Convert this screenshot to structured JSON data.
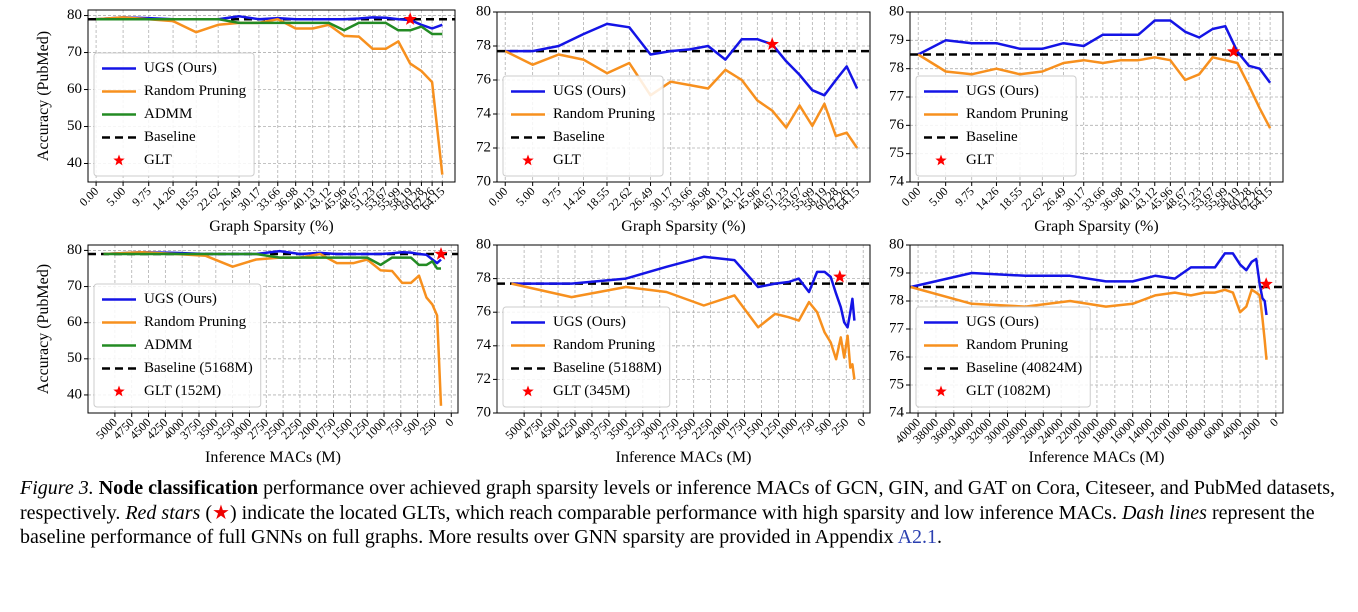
{
  "chart_data": [
    {
      "type": "line",
      "xlabel": "Graph Sparsity (%)",
      "ylabel": "Accuracy (PubMed)",
      "legend": "lower left",
      "grid": true,
      "xlim": [
        -1.5,
        66.5
      ],
      "ylim": [
        35,
        81.5
      ],
      "xticks": [
        {
          "value": 0,
          "label": "0.00"
        },
        {
          "value": 5,
          "label": "5.00"
        },
        9.75,
        14.26,
        18.55,
        22.62,
        26.49,
        30.17,
        33.66,
        36.98,
        40.13,
        43.12,
        45.96,
        48.67,
        51.23,
        53.67,
        55.99,
        58.19,
        60.28,
        62.26,
        64.15
      ],
      "yticks": [
        40,
        50,
        60,
        70,
        80
      ],
      "x": [
        0,
        5,
        9.75,
        14.26,
        18.55,
        22.62,
        26.49,
        30.17,
        33.66,
        36.98,
        40.13,
        43.12,
        45.96,
        48.67,
        51.23,
        53.67,
        55.99,
        58.19,
        60.28,
        62.26,
        64.15
      ],
      "series": [
        {
          "name": "UGS (Ours)",
          "color": "#1414e6",
          "values": [
            79,
            79.5,
            79.3,
            79,
            79,
            79,
            79.8,
            79,
            79.3,
            79,
            79,
            79,
            79,
            79.2,
            79.5,
            79.4,
            79,
            78.8,
            77.5,
            76.5,
            77.5
          ]
        },
        {
          "name": "Random Pruning",
          "color": "#f7901e",
          "values": [
            79,
            79.5,
            79,
            78.5,
            75.5,
            77.5,
            78,
            78,
            79,
            76.5,
            76.5,
            77.5,
            74.5,
            74.3,
            71,
            71,
            73,
            67,
            65,
            62,
            37
          ]
        },
        {
          "name": "ADMM",
          "color": "#238b23",
          "values": [
            79,
            79,
            79,
            79,
            79,
            79,
            78,
            78,
            78,
            78,
            78,
            78,
            76,
            78,
            78,
            78,
            76,
            76,
            77,
            75,
            75
          ]
        }
      ],
      "baseline": {
        "name": "Baseline",
        "value": 79
      },
      "glt": {
        "name": "GLT",
        "x": 58.19,
        "y": 79
      }
    },
    {
      "type": "line",
      "xlabel": "Graph Sparsity (%)",
      "legend": "lower left",
      "grid": true,
      "xlim": [
        -1.5,
        66.5
      ],
      "ylim": [
        70,
        80
      ],
      "xticks": [
        {
          "value": 0,
          "label": "0.00"
        },
        {
          "value": 5,
          "label": "5.00"
        },
        9.75,
        14.26,
        18.55,
        22.62,
        26.49,
        30.17,
        33.66,
        36.98,
        40.13,
        43.12,
        45.96,
        48.67,
        51.23,
        53.67,
        55.99,
        58.19,
        60.28,
        62.26,
        64.15
      ],
      "yticks": [
        70,
        72,
        74,
        76,
        78,
        80
      ],
      "x": [
        0,
        5,
        9.75,
        14.26,
        18.55,
        22.62,
        26.49,
        30.17,
        33.66,
        36.98,
        40.13,
        43.12,
        45.96,
        48.67,
        51.23,
        53.67,
        55.99,
        58.19,
        60.28,
        62.26,
        64.15
      ],
      "series": [
        {
          "name": "UGS (Ours)",
          "color": "#1414e6",
          "values": [
            77.7,
            77.7,
            78,
            78.7,
            79.3,
            79.1,
            77.5,
            77.7,
            77.8,
            78,
            77.2,
            78.4,
            78.4,
            78.1,
            77.1,
            76.3,
            75.4,
            75.1,
            76,
            76.8,
            75.5
          ]
        },
        {
          "name": "Random Pruning",
          "color": "#f7901e",
          "values": [
            77.7,
            76.9,
            77.5,
            77.2,
            76.4,
            77,
            75.1,
            75.9,
            75.7,
            75.5,
            76.6,
            76,
            74.8,
            74.2,
            73.2,
            74.5,
            73.3,
            74.6,
            72.7,
            72.9,
            72
          ]
        }
      ],
      "baseline": {
        "name": "Baseline",
        "value": 77.7
      },
      "glt": {
        "name": "GLT",
        "x": 48.67,
        "y": 78.1
      }
    },
    {
      "type": "line",
      "xlabel": "Graph Sparsity (%)",
      "legend": "lower left",
      "grid": true,
      "xlim": [
        -1.5,
        66.5
      ],
      "ylim": [
        74,
        80
      ],
      "xticks": [
        {
          "value": 0,
          "label": "0.00"
        },
        {
          "value": 5,
          "label": "5.00"
        },
        9.75,
        14.26,
        18.55,
        22.62,
        26.49,
        30.17,
        33.66,
        36.98,
        40.13,
        43.12,
        45.96,
        48.67,
        51.23,
        53.67,
        55.99,
        58.19,
        60.28,
        62.26,
        64.15
      ],
      "yticks": [
        74,
        75,
        76,
        77,
        78,
        79,
        80
      ],
      "x": [
        0,
        5,
        9.75,
        14.26,
        18.55,
        22.62,
        26.49,
        30.17,
        33.66,
        36.98,
        40.13,
        43.12,
        45.96,
        48.67,
        51.23,
        53.67,
        55.99,
        58.19,
        60.28,
        62.26,
        64.15
      ],
      "series": [
        {
          "name": "UGS (Ours)",
          "color": "#1414e6",
          "values": [
            78.5,
            79,
            78.9,
            78.9,
            78.7,
            78.7,
            78.9,
            78.8,
            79.2,
            79.2,
            79.2,
            79.7,
            79.7,
            79.3,
            79.1,
            79.4,
            79.5,
            78.6,
            78.1,
            78,
            77.5
          ]
        },
        {
          "name": "Random Pruning",
          "color": "#f7901e",
          "values": [
            78.5,
            77.9,
            77.8,
            78,
            77.8,
            77.9,
            78.2,
            78.3,
            78.2,
            78.3,
            78.3,
            78.4,
            78.3,
            77.6,
            77.8,
            78.4,
            78.3,
            78.2,
            77.4,
            76.6,
            75.9
          ]
        }
      ],
      "baseline": {
        "name": "Baseline",
        "value": 78.5
      },
      "glt": {
        "name": "GLT",
        "x": 57.5,
        "y": 78.6
      }
    },
    {
      "type": "line",
      "xlabel": "Inference MACs (M)",
      "ylabel": "Accuracy (PubMed)",
      "legend": "lower left",
      "grid": true,
      "xlim": [
        5400,
        -100
      ],
      "ylim": [
        35,
        81.5
      ],
      "xticks": [
        5000,
        4750,
        4500,
        4250,
        4000,
        3750,
        3500,
        3250,
        3000,
        2750,
        2500,
        2250,
        2000,
        1750,
        1500,
        1250,
        1000,
        750,
        500,
        250,
        0
      ],
      "yticks": [
        40,
        50,
        60,
        70,
        80
      ],
      "x": [
        5168,
        4600,
        4100,
        3650,
        3250,
        2900,
        2550,
        2250,
        1950,
        1700,
        1450,
        1250,
        1050,
        880,
        730,
        600,
        480,
        370,
        280,
        210,
        152
      ],
      "series": [
        {
          "name": "UGS (Ours)",
          "color": "#1414e6",
          "values": [
            79,
            79.5,
            79.3,
            79,
            79,
            79,
            79.8,
            79,
            79.3,
            79,
            79,
            79,
            79,
            79.2,
            79.5,
            79.4,
            79,
            78.8,
            77.5,
            76.5,
            77.5
          ]
        },
        {
          "name": "Random Pruning",
          "color": "#f7901e",
          "values": [
            79,
            79.5,
            79,
            78.5,
            75.5,
            77.5,
            78,
            78,
            79,
            76.5,
            76.5,
            77.5,
            74.5,
            74.3,
            71,
            71,
            73,
            67,
            65,
            62,
            37
          ]
        },
        {
          "name": "ADMM",
          "color": "#238b23",
          "values": [
            79,
            79,
            79,
            79,
            79,
            79,
            78,
            78,
            78,
            78,
            78,
            78,
            76,
            78,
            78,
            78,
            76,
            76,
            77,
            75,
            75
          ]
        }
      ],
      "baseline": {
        "name": "Baseline (5168M)",
        "value": 79
      },
      "glt": {
        "name": "GLT (152M)",
        "x": 152,
        "y": 79
      }
    },
    {
      "type": "line",
      "xlabel": "Inference MACs (M)",
      "legend": "lower left",
      "grid": true,
      "xlim": [
        5400,
        -100
      ],
      "ylim": [
        70,
        80
      ],
      "xticks": [
        5000,
        4750,
        4500,
        4250,
        4000,
        3750,
        3500,
        3250,
        3000,
        2750,
        2500,
        2250,
        2000,
        1750,
        1500,
        1250,
        1000,
        750,
        500,
        250,
        0
      ],
      "yticks": [
        70,
        72,
        74,
        76,
        78,
        80
      ],
      "x": [
        5188,
        4300,
        3500,
        2900,
        2350,
        1900,
        1550,
        1300,
        1100,
        950,
        800,
        680,
        570,
        480,
        400,
        330,
        280,
        230,
        190,
        160,
        130
      ],
      "series": [
        {
          "name": "UGS (Ours)",
          "color": "#1414e6",
          "values": [
            77.7,
            77.7,
            78,
            78.7,
            79.3,
            79.1,
            77.5,
            77.7,
            77.8,
            78,
            77.2,
            78.4,
            78.4,
            78.1,
            77.1,
            76.3,
            75.4,
            75.1,
            76,
            76.8,
            75.5
          ]
        },
        {
          "name": "Random Pruning",
          "color": "#f7901e",
          "values": [
            77.7,
            76.9,
            77.5,
            77.2,
            76.4,
            77,
            75.1,
            75.9,
            75.7,
            75.5,
            76.6,
            76,
            74.8,
            74.2,
            73.2,
            74.5,
            73.3,
            74.6,
            72.7,
            72.9,
            72
          ]
        }
      ],
      "baseline": {
        "name": "Baseline (5188M)",
        "value": 77.7
      },
      "glt": {
        "name": "GLT (345M)",
        "x": 345,
        "y": 78.1
      }
    },
    {
      "type": "line",
      "xlabel": "Inference MACs (M)",
      "legend": "lower left",
      "grid": true,
      "xlim": [
        40900,
        -800
      ],
      "ylim": [
        74,
        80
      ],
      "xticks": [
        40000,
        38000,
        36000,
        34000,
        32000,
        30000,
        28000,
        26000,
        24000,
        22000,
        20000,
        18000,
        16000,
        14000,
        12000,
        10000,
        8000,
        6000,
        4000,
        2000,
        0
      ],
      "yticks": [
        74,
        75,
        76,
        77,
        78,
        79,
        80
      ],
      "x": [
        40824,
        34000,
        28000,
        23000,
        19000,
        16000,
        13500,
        11300,
        9500,
        8000,
        6800,
        5700,
        4800,
        4000,
        3300,
        2700,
        2200,
        1800,
        1500,
        1250,
        1050
      ],
      "series": [
        {
          "name": "UGS (Ours)",
          "color": "#1414e6",
          "values": [
            78.5,
            79,
            78.9,
            78.9,
            78.7,
            78.7,
            78.9,
            78.8,
            79.2,
            79.2,
            79.2,
            79.7,
            79.7,
            79.3,
            79.1,
            79.4,
            79.5,
            78.6,
            78.1,
            78,
            77.5
          ]
        },
        {
          "name": "Random Pruning",
          "color": "#f7901e",
          "values": [
            78.5,
            77.9,
            77.8,
            78,
            77.8,
            77.9,
            78.2,
            78.3,
            78.2,
            78.3,
            78.3,
            78.4,
            78.3,
            77.6,
            77.8,
            78.4,
            78.3,
            78.2,
            77.4,
            76.6,
            75.9
          ]
        }
      ],
      "baseline": {
        "name": "Baseline (40824M)",
        "value": 78.5
      },
      "glt": {
        "name": "GLT (1082M)",
        "x": 1082,
        "y": 78.6
      }
    }
  ],
  "caption": [
    "Figure 3.",
    "Node classification",
    "performance over achieved graph sparsity levels or inference MACs of GCN, GIN, and GAT on Cora, Citeseer, and PubMed datasets, respectively.",
    "Red stars",
    "(",
    "★",
    ")",
    "indicate the located GLTs, which reach comparable performance with high sparsity and low inference MACs.",
    "Dash lines",
    "represent the baseline performance of full GNNs on full graphs. More results over GNN sparsity are provided in Appendix",
    "A2.1",
    "."
  ]
}
